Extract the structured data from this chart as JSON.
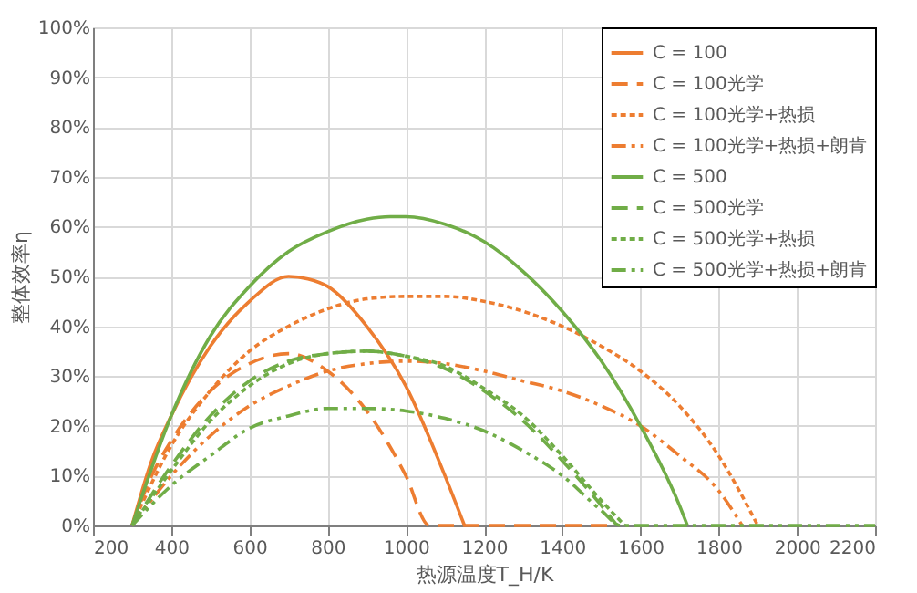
{
  "chart_data": {
    "type": "line",
    "xlabel": "热源温度T_H/K",
    "ylabel": "整体效率η",
    "xlim": [
      200,
      2200
    ],
    "xticks": [
      200,
      400,
      600,
      800,
      1000,
      1200,
      1400,
      1600,
      1800,
      2000,
      2200
    ],
    "ylim": [
      0,
      100
    ],
    "yticks": [
      {
        "value": 0,
        "label": "0%"
      },
      {
        "value": 10,
        "label": "10%"
      },
      {
        "value": 20,
        "label": "20%"
      },
      {
        "value": 30,
        "label": "30%"
      },
      {
        "value": 40,
        "label": "40%"
      },
      {
        "value": 50,
        "label": "50%"
      },
      {
        "value": 60,
        "label": "60%"
      },
      {
        "value": 70,
        "label": "70%"
      },
      {
        "value": 80,
        "label": "80%"
      },
      {
        "value": 90,
        "label": "90%"
      },
      {
        "value": 100,
        "label": "100%"
      }
    ],
    "grid": true,
    "legend": "top right",
    "marker": "none",
    "series": [
      {
        "name": "C = 100",
        "color": "#ed7d31",
        "line_style": "solid",
        "x": [
          300,
          350,
          400,
          500,
          600,
          700,
          750,
          800,
          900,
          1000,
          1100,
          1150
        ],
        "values": [
          0,
          13,
          22,
          36,
          45,
          50,
          49.5,
          48,
          40,
          28,
          10,
          0
        ]
      },
      {
        "name": "C = 100光学",
        "color": "#ed7d31",
        "line_style": "dashed",
        "x": [
          300,
          350,
          400,
          500,
          600,
          700,
          800,
          900,
          1000,
          1060,
          1520
        ],
        "values": [
          0,
          10,
          17,
          27,
          32.5,
          34.5,
          31,
          23,
          10,
          0,
          0
        ]
      },
      {
        "name": "C = 100光学+热损",
        "color": "#ed7d31",
        "line_style": "dotted",
        "x": [
          300,
          400,
          500,
          600,
          700,
          800,
          900,
          1000,
          1100,
          1200,
          1300,
          1400,
          1500,
          1600,
          1700,
          1800,
          1900
        ],
        "values": [
          0,
          16,
          27,
          35,
          40,
          43.5,
          45.5,
          46,
          46,
          45,
          43,
          40,
          36,
          31,
          24,
          14,
          0
        ]
      },
      {
        "name": "C = 100光学+热损+朗肯",
        "color": "#ed7d31",
        "line_style": "dashdot",
        "x": [
          300,
          400,
          500,
          600,
          700,
          800,
          900,
          1000,
          1100,
          1200,
          1300,
          1400,
          1500,
          1600,
          1700,
          1800,
          1860
        ],
        "values": [
          0,
          10,
          18,
          24,
          28,
          31,
          32.5,
          33,
          32.5,
          31,
          29,
          27,
          24,
          20,
          14,
          7,
          0
        ]
      },
      {
        "name": "C = 500",
        "color": "#70ad47",
        "line_style": "solid",
        "x": [
          300,
          400,
          500,
          600,
          700,
          800,
          900,
          960,
          1000,
          1100,
          1200,
          1300,
          1400,
          1500,
          1600,
          1700,
          1720
        ],
        "values": [
          0,
          22,
          38,
          48,
          55,
          59,
          61.5,
          62,
          62,
          60.5,
          57,
          51,
          43,
          33,
          20,
          4,
          0
        ]
      },
      {
        "name": "C = 500光学",
        "color": "#70ad47",
        "line_style": "dashed",
        "x": [
          300,
          400,
          500,
          600,
          700,
          800,
          900,
          1000,
          1100,
          1200,
          1300,
          1400,
          1500,
          1540
        ],
        "values": [
          0,
          12,
          22,
          29,
          33,
          34.5,
          35,
          34,
          31.5,
          27,
          21,
          13,
          4,
          0
        ]
      },
      {
        "name": "C = 500光学+热损",
        "color": "#70ad47",
        "line_style": "dotted",
        "x": [
          300,
          400,
          500,
          600,
          700,
          800,
          900,
          1000,
          1100,
          1200,
          1300,
          1400,
          1500,
          1560
        ],
        "values": [
          0,
          11,
          21,
          28,
          32.5,
          34.5,
          35,
          34,
          32,
          27.5,
          22,
          14,
          5,
          0
        ]
      },
      {
        "name": "C = 500光学+热损+朗肯",
        "color": "#70ad47",
        "line_style": "dashdot",
        "x": [
          300,
          400,
          500,
          600,
          700,
          800,
          900,
          1000,
          1100,
          1200,
          1300,
          1400,
          1500,
          1550,
          2200
        ],
        "values": [
          0,
          8,
          14,
          19.5,
          22,
          23.5,
          23.5,
          23,
          21.5,
          19,
          15,
          10,
          3,
          0,
          0
        ]
      }
    ]
  }
}
